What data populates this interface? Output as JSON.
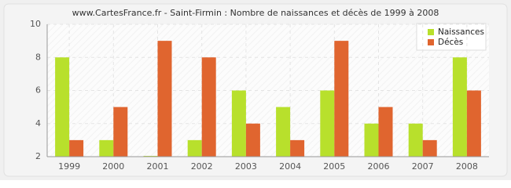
{
  "chart_data": {
    "type": "bar",
    "title": "www.CartesFrance.fr - Saint-Firmin : Nombre de naissances et décès de 1999 à 2008",
    "categories": [
      "1999",
      "2000",
      "2001",
      "2002",
      "2003",
      "2004",
      "2005",
      "2006",
      "2007",
      "2008"
    ],
    "series": [
      {
        "name": "Naissances",
        "color": "#b8e02c",
        "values": [
          8,
          3,
          2,
          3,
          6,
          5,
          6,
          4,
          4,
          8
        ]
      },
      {
        "name": "Décès",
        "color": "#e0652f",
        "values": [
          3,
          5,
          9,
          8,
          4,
          3,
          9,
          5,
          3,
          6
        ]
      }
    ],
    "ylim": [
      2,
      10
    ],
    "yticks": [
      2,
      4,
      6,
      8,
      10
    ],
    "grid": true,
    "legend": "top-right"
  }
}
